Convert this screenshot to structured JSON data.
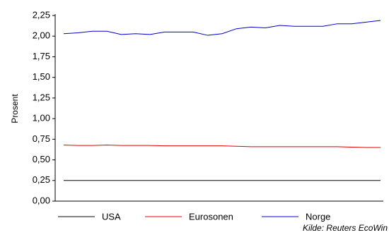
{
  "chart_data": {
    "type": "line",
    "y_label": "Prosent",
    "source": "Kilde: Reuters EcoWin",
    "categories": [
      null,
      null,
      null,
      null,
      null,
      null,
      null,
      null,
      null,
      null,
      null,
      null,
      null,
      null,
      null,
      null,
      null,
      null,
      null,
      null,
      null,
      null,
      null
    ],
    "series": [
      {
        "name": "USA",
        "color": "#000000",
        "values": [
          0.25,
          0.25,
          0.25,
          0.25,
          0.25,
          0.25,
          0.25,
          0.25,
          0.25,
          0.25,
          0.25,
          0.25,
          0.25,
          0.25,
          0.25,
          0.25,
          0.25,
          0.25,
          0.25,
          0.25,
          0.25,
          0.25,
          0.25
        ]
      },
      {
        "name": "Eurosonen",
        "color": "#e00000",
        "values": [
          0.68,
          0.675,
          0.675,
          0.68,
          0.675,
          0.675,
          0.675,
          0.67,
          0.67,
          0.67,
          0.67,
          0.67,
          0.665,
          0.66,
          0.66,
          0.66,
          0.66,
          0.66,
          0.66,
          0.66,
          0.655,
          0.65,
          0.65
        ]
      },
      {
        "name": "Norge",
        "color": "#0000cc",
        "values": [
          2.03,
          2.04,
          2.06,
          2.06,
          2.02,
          2.03,
          2.02,
          2.05,
          2.05,
          2.05,
          2.01,
          2.03,
          2.09,
          2.11,
          2.1,
          2.13,
          2.12,
          2.12,
          2.12,
          2.15,
          2.15,
          2.17,
          2.19
        ]
      }
    ],
    "ylim": [
      0,
      2.25
    ],
    "yticks": [
      {
        "value": 0,
        "label": "0,00"
      },
      {
        "value": 0.25,
        "label": "0,25"
      },
      {
        "value": 0.5,
        "label": "0,50"
      },
      {
        "value": 0.75,
        "label": "0,75"
      },
      {
        "value": 1,
        "label": "1,00"
      },
      {
        "value": 1.25,
        "label": "1,25"
      },
      {
        "value": 1.5,
        "label": "1,50"
      },
      {
        "value": 1.75,
        "label": "1,75"
      },
      {
        "value": 2,
        "label": "2,00"
      },
      {
        "value": 2.25,
        "label": "2,25"
      }
    ],
    "grid": false,
    "legend": "bottom"
  }
}
